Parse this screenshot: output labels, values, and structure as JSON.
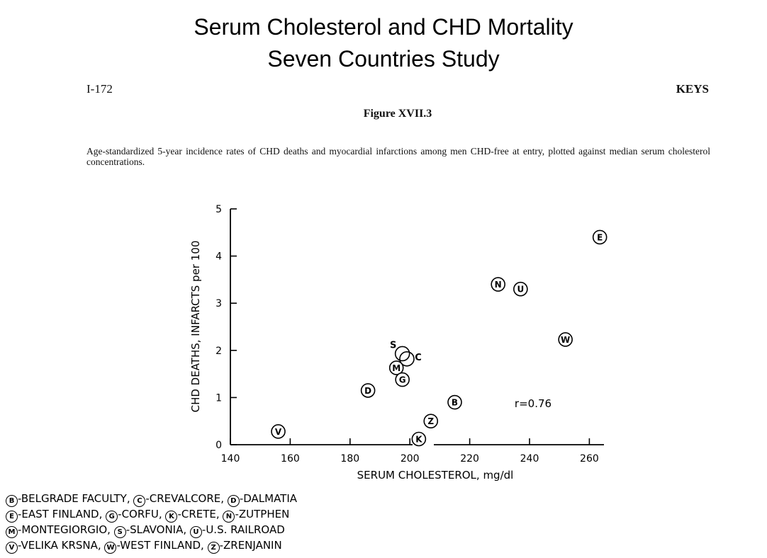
{
  "slide": {
    "title_line1": "Serum Cholesterol and CHD Mortality",
    "title_line2": "Seven Countries Study"
  },
  "page": {
    "page_number": "I-172",
    "author": "KEYS",
    "figure_label": "Figure XVII.3",
    "caption": "Age-standardized 5-year incidence rates of CHD deaths and myocardial infarctions among men CHD-free at entry, plotted against median serum cholesterol concentrations."
  },
  "chart_data": {
    "type": "scatter",
    "xlabel": "SERUM CHOLESTEROL, mg/dl",
    "ylabel": "CHD DEATHS, INFARCTS per 100",
    "xlim": [
      140,
      265
    ],
    "ylim": [
      0,
      5
    ],
    "xticks": [
      140,
      160,
      180,
      200,
      220,
      240,
      260
    ],
    "yticks": [
      0,
      1,
      2,
      3,
      4,
      5
    ],
    "annotation": "r=0.76",
    "points": [
      {
        "label": "V",
        "x": 156,
        "y": 0.28,
        "circled": true
      },
      {
        "label": "D",
        "x": 186,
        "y": 1.15,
        "circled": true
      },
      {
        "label": "S",
        "x": 197.5,
        "y": 1.93,
        "circled": false
      },
      {
        "label": "C",
        "x": 199,
        "y": 1.82,
        "circled": false
      },
      {
        "label": "M",
        "x": 195.5,
        "y": 1.63,
        "circled": true
      },
      {
        "label": "G",
        "x": 197.5,
        "y": 1.38,
        "circled": true
      },
      {
        "label": "K",
        "x": 203,
        "y": 0.12,
        "circled": true
      },
      {
        "label": "Z",
        "x": 207,
        "y": 0.5,
        "circled": true
      },
      {
        "label": "B",
        "x": 215,
        "y": 0.9,
        "circled": true
      },
      {
        "label": "N",
        "x": 229.5,
        "y": 3.4,
        "circled": true
      },
      {
        "label": "U",
        "x": 237,
        "y": 3.3,
        "circled": true
      },
      {
        "label": "W",
        "x": 252,
        "y": 2.23,
        "circled": true
      },
      {
        "label": "E",
        "x": 263.5,
        "y": 4.4,
        "circled": true
      }
    ]
  },
  "legend": {
    "lines": [
      [
        {
          "code": "B",
          "text": "-BELGRADE FACULTY,"
        },
        {
          "code": "C",
          "text": "-CREVALCORE,"
        },
        {
          "code": "D",
          "text": "-DALMATIA"
        }
      ],
      [
        {
          "code": "E",
          "text": "-EAST FINLAND,"
        },
        {
          "code": "G",
          "text": "-CORFU,"
        },
        {
          "code": "K",
          "text": "-CRETE,"
        },
        {
          "code": "N",
          "text": "-ZUTPHEN"
        }
      ],
      [
        {
          "code": "M",
          "text": "-MONTEGIORGIO,"
        },
        {
          "code": "S",
          "text": "-SLAVONIA,"
        },
        {
          "code": "U",
          "text": "-U.S. RAILROAD"
        }
      ],
      [
        {
          "code": "V",
          "text": "-VELIKA KRSNA,"
        },
        {
          "code": "W",
          "text": "-WEST FINLAND,"
        },
        {
          "code": "Z",
          "text": "-ZRENJANIN"
        }
      ]
    ]
  }
}
